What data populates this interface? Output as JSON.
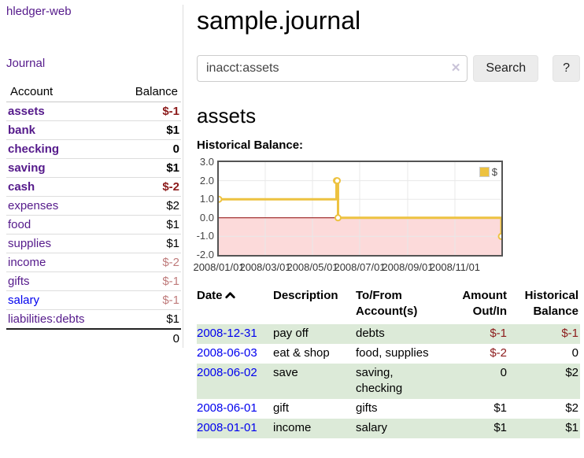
{
  "theme": {
    "purple-link": "#551a8b",
    "blue-link": "#0000ee",
    "negative": "#8c1b1b",
    "negative-muted": "#bf7b7b",
    "row-green": "#dcead8",
    "border-gray": "#dddddd"
  },
  "app": {
    "title": "hledger-web"
  },
  "sidebar": {
    "journal_label": "Journal",
    "headers": [
      "Account",
      "Balance"
    ],
    "rows": [
      {
        "account": "assets",
        "balance": "$-1",
        "depth": 0
      },
      {
        "account": "bank",
        "balance": "$1",
        "depth": 1
      },
      {
        "account": "checking",
        "balance": "0",
        "depth": 2
      },
      {
        "account": "saving",
        "balance": "$1",
        "depth": 2
      },
      {
        "account": "cash",
        "balance": "$-2",
        "depth": 1
      },
      {
        "account": "expenses",
        "balance": "$2",
        "depth": 0
      },
      {
        "account": "food",
        "balance": "$1",
        "depth": 1
      },
      {
        "account": "supplies",
        "balance": "$1",
        "depth": 1
      },
      {
        "account": "income",
        "balance": "$-2",
        "depth": 0
      },
      {
        "account": "gifts",
        "balance": "$-1",
        "depth": 1
      },
      {
        "account": "salary",
        "balance": "$-1",
        "depth": 1
      },
      {
        "account": "liabilities:debts",
        "balance": "$1",
        "depth": 0
      }
    ],
    "total": "0"
  },
  "main": {
    "title": "sample.journal",
    "account_title": "assets",
    "chart_title": "Historical Balance:"
  },
  "search": {
    "value": "inacct:assets",
    "clear_icon": "✕",
    "button_label": "Search",
    "help_label": "?"
  },
  "chart_data": {
    "type": "line",
    "step": true,
    "title": "Historical Balance:",
    "x_range": [
      "2008-01-01",
      "2008-12-31"
    ],
    "y_range": [
      -2,
      3
    ],
    "x_ticks": [
      {
        "date": "2008-01-01",
        "label": "2008/01/01"
      },
      {
        "date": "2008-03-01",
        "label": "2008/03/01"
      },
      {
        "date": "2008-05-01",
        "label": "2008/05/01"
      },
      {
        "date": "2008-07-01",
        "label": "2008/07/01"
      },
      {
        "date": "2008-09-01",
        "label": "2008/09/01"
      },
      {
        "date": "2008-11-01",
        "label": "2008/11/01"
      }
    ],
    "y_ticks": [
      3.0,
      2.0,
      1.0,
      0.0,
      -1.0,
      -2.0
    ],
    "series": [
      {
        "name": "$",
        "color": "#edc240",
        "marker": "open-circle",
        "points": [
          [
            "2008-01-01",
            1
          ],
          [
            "2008-06-01",
            2
          ],
          [
            "2008-06-02",
            2
          ],
          [
            "2008-06-03",
            0
          ],
          [
            "2008-12-31",
            -1
          ]
        ]
      }
    ],
    "legend_position": "top-right",
    "grid": true,
    "grid_color": "#e8e8e8",
    "negative_region_fill": "#fcdada",
    "zero_line_color": "#8b0000"
  },
  "register": {
    "headers": {
      "date": "Date",
      "description": "Description",
      "accounts": "To/From Account(s)",
      "amount": "Amount Out/In",
      "balance": "Historical Balance"
    },
    "rows": [
      {
        "date": "2008-12-31",
        "description": "pay off",
        "accounts": "debts",
        "amount": "$-1",
        "balance": "$-1"
      },
      {
        "date": "2008-06-03",
        "description": "eat & shop",
        "accounts": "food, supplies",
        "amount": "$-2",
        "balance": "0"
      },
      {
        "date": "2008-06-02",
        "description": "save",
        "accounts": "saving, checking",
        "amount": "0",
        "balance": "$2"
      },
      {
        "date": "2008-06-01",
        "description": "gift",
        "accounts": "gifts",
        "amount": "$1",
        "balance": "$2"
      },
      {
        "date": "2008-01-01",
        "description": "income",
        "accounts": "salary",
        "amount": "$1",
        "balance": "$1"
      }
    ]
  }
}
